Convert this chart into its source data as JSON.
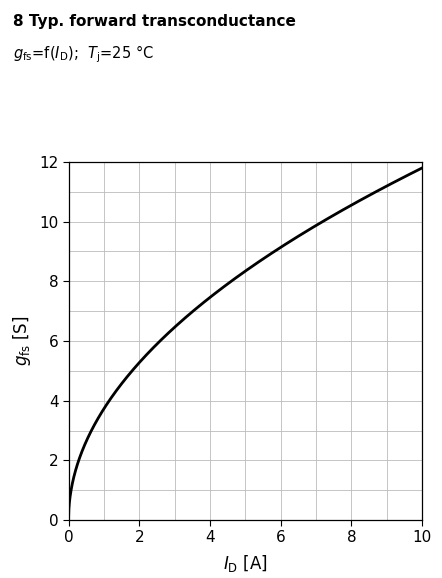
{
  "title_bold": "8 Typ. forward transconductance",
  "subtitle_text": "g_fs=f(I_D);  T_j=25 °C",
  "xlabel": "$I_\\mathrm{D}$ [A]",
  "ylabel": "$g_\\mathrm{fs}$ [S]",
  "xlim": [
    0,
    10
  ],
  "ylim": [
    0,
    12
  ],
  "xticks": [
    0,
    2,
    4,
    6,
    8,
    10
  ],
  "yticks": [
    0,
    2,
    4,
    6,
    8,
    10,
    12
  ],
  "minor_xticks": [
    0,
    1,
    2,
    3,
    4,
    5,
    6,
    7,
    8,
    9,
    10
  ],
  "minor_yticks": [
    0,
    1,
    2,
    3,
    4,
    5,
    6,
    7,
    8,
    9,
    10,
    11,
    12
  ],
  "grid_color": "#bbbbbb",
  "curve_color": "#000000",
  "curve_linewidth": 2.0,
  "bg_color": "#ffffff",
  "curve_a": 3.73,
  "curve_b": 0.5
}
